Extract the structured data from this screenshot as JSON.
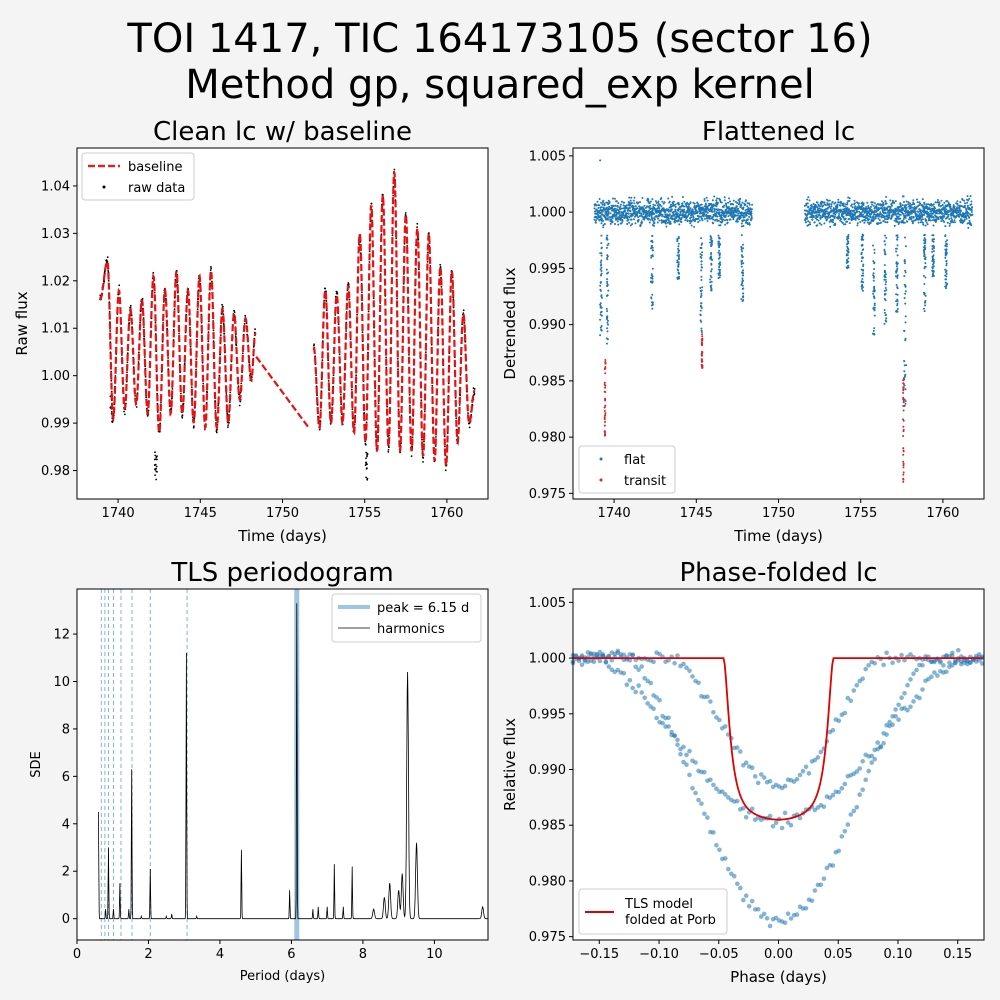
{
  "figure": {
    "title_line1": "TOI 1417, TIC 164173105 (sector 16)",
    "title_line2": "Method gp, squared_exp kernel",
    "colors": {
      "background": "#f4f4f4",
      "blue": "#1f77b4",
      "red": "#d62728",
      "model_red": "#e00000",
      "light_blue": "#9ec6df"
    }
  },
  "chart_data": [
    {
      "type": "scatter",
      "title": "Clean lc w/ baseline",
      "xlabel": "Time (days)",
      "ylabel": "Raw flux",
      "xlim": [
        1737.5,
        1762.5
      ],
      "ylim": [
        0.974,
        1.048
      ],
      "xticks": [
        1740,
        1745,
        1750,
        1755,
        1760
      ],
      "yticks": [
        0.98,
        0.99,
        1.0,
        1.01,
        1.02,
        1.03,
        1.04
      ],
      "ytick_labels": [
        "0.98",
        "0.99",
        "1.00",
        "1.01",
        "1.02",
        "1.03",
        "1.04"
      ],
      "legend": {
        "position": "upper-left",
        "entries": [
          "baseline",
          "raw data"
        ]
      },
      "series": [
        {
          "name": "baseline",
          "style": "dashed-line",
          "color": "#d62728",
          "segments": [
            {
              "x_range": [
                1738.8,
                1748.4
              ],
              "peaks": [
                [
                  1739.35,
                  1.024
                ],
                [
                  1740.05,
                  1.018
                ],
                [
                  1740.75,
                  1.014
                ],
                [
                  1741.45,
                  1.016
                ],
                [
                  1742.15,
                  1.021
                ],
                [
                  1742.85,
                  1.018
                ],
                [
                  1743.55,
                  1.022
                ],
                [
                  1744.25,
                  1.018
                ],
                [
                  1744.95,
                  1.021
                ],
                [
                  1745.65,
                  1.022
                ],
                [
                  1746.35,
                  1.014
                ],
                [
                  1747.05,
                  1.013
                ],
                [
                  1747.75,
                  1.012
                ],
                [
                  1748.35,
                  1.009
                ]
              ],
              "troughs": [
                [
                  1738.9,
                  1.016
                ],
                [
                  1739.7,
                  0.991
                ],
                [
                  1740.4,
                  0.993
                ],
                [
                  1741.1,
                  0.994
                ],
                [
                  1741.8,
                  0.992
                ],
                [
                  1742.5,
                  0.988
                ],
                [
                  1743.2,
                  0.992
                ],
                [
                  1743.9,
                  0.992
                ],
                [
                  1744.6,
                  0.99
                ],
                [
                  1745.3,
                  0.989
                ],
                [
                  1746.0,
                  0.989
                ],
                [
                  1746.7,
                  0.99
                ],
                [
                  1747.4,
                  0.995
                ],
                [
                  1748.1,
                  0.999
                ]
              ]
            },
            {
              "x_range": [
                1748.4,
                1751.6
              ],
              "line": [
                [
                  1748.4,
                  1.004
                ],
                [
                  1751.6,
                  0.989
                ]
              ]
            },
            {
              "x_range": [
                1751.6,
                1761.8
              ],
              "peaks": [
                [
                  1751.9,
                  1.006
                ],
                [
                  1752.6,
                  1.018
                ],
                [
                  1753.3,
                  1.017
                ],
                [
                  1754.0,
                  1.019
                ],
                [
                  1754.7,
                  1.03
                ],
                [
                  1755.4,
                  1.036
                ],
                [
                  1756.1,
                  1.038
                ],
                [
                  1756.8,
                  1.043
                ],
                [
                  1757.5,
                  1.034
                ],
                [
                  1758.2,
                  1.031
                ],
                [
                  1758.9,
                  1.03
                ],
                [
                  1759.6,
                  1.023
                ],
                [
                  1760.3,
                  1.022
                ],
                [
                  1761.0,
                  1.013
                ],
                [
                  1761.7,
                  0.997
                ]
              ],
              "troughs": [
                [
                  1752.25,
                  0.989
                ],
                [
                  1752.95,
                  0.99
                ],
                [
                  1753.65,
                  0.99
                ],
                [
                  1754.35,
                  0.988
                ],
                [
                  1755.05,
                  0.986
                ],
                [
                  1755.75,
                  0.984
                ],
                [
                  1756.45,
                  0.985
                ],
                [
                  1757.15,
                  0.984
                ],
                [
                  1757.85,
                  0.984
                ],
                [
                  1758.55,
                  0.983
                ],
                [
                  1759.25,
                  0.982
                ],
                [
                  1759.95,
                  0.981
                ],
                [
                  1760.65,
                  0.986
                ],
                [
                  1761.35,
                  0.99
                ]
              ]
            }
          ]
        },
        {
          "name": "raw data",
          "style": "points",
          "color": "#000000"
        }
      ]
    },
    {
      "type": "scatter",
      "title": "Flattened lc",
      "xlabel": "Time (days)",
      "ylabel": "Detrended flux",
      "xlim": [
        1737.5,
        1762.5
      ],
      "ylim": [
        0.9745,
        1.0057
      ],
      "xticks": [
        1740,
        1745,
        1750,
        1755,
        1760
      ],
      "yticks": [
        0.975,
        0.98,
        0.985,
        0.99,
        0.995,
        1.0,
        1.005
      ],
      "ytick_labels": [
        "0.975",
        "0.980",
        "0.985",
        "0.990",
        "0.995",
        "1.000",
        "1.005"
      ],
      "legend": {
        "position": "lower-left",
        "entries": [
          "flat",
          "transit"
        ]
      },
      "series": [
        {
          "name": "flat",
          "color": "#1f77b4",
          "x_ranges": [
            [
              1738.8,
              1748.4
            ],
            [
              1751.6,
              1761.8
            ]
          ],
          "band": [
            0.997,
            1.002
          ],
          "dips": [
            [
              1739.2,
              0.989
            ],
            [
              1739.6,
              0.988
            ],
            [
              1742.3,
              0.991
            ],
            [
              1743.9,
              0.994
            ],
            [
              1745.3,
              0.989
            ],
            [
              1745.9,
              0.993
            ],
            [
              1746.4,
              0.994
            ],
            [
              1747.8,
              0.992
            ],
            [
              1754.2,
              0.995
            ],
            [
              1755.1,
              0.993
            ],
            [
              1755.8,
              0.989
            ],
            [
              1756.5,
              0.99
            ],
            [
              1757.2,
              0.991
            ],
            [
              1757.7,
              0.981
            ],
            [
              1758.9,
              0.991
            ],
            [
              1759.4,
              0.994
            ],
            [
              1760.2,
              0.993
            ]
          ]
        },
        {
          "name": "transit",
          "color": "#d62728",
          "points_x": [
            1739.45,
            1745.35,
            1757.6
          ],
          "points_y_min": [
            0.98,
            0.986,
            0.976
          ]
        }
      ]
    },
    {
      "type": "line",
      "title": "TLS periodogram",
      "xlabel": "Period (days)",
      "ylabel": "SDE",
      "xlim": [
        0,
        11.5
      ],
      "ylim": [
        -0.9,
        13.9
      ],
      "xticks": [
        0,
        2,
        4,
        6,
        8,
        10
      ],
      "yticks": [
        0,
        2,
        4,
        6,
        8,
        10,
        12
      ],
      "legend": {
        "position": "upper-right",
        "entries": [
          "peak = 6.15 d",
          "harmonics"
        ]
      },
      "peak_period": 6.15,
      "harmonics": [
        0.68,
        0.78,
        0.88,
        1.02,
        1.23,
        1.54,
        2.05,
        3.08
      ],
      "peaks": [
        [
          0.6,
          4.5
        ],
        [
          0.8,
          0.4
        ],
        [
          0.88,
          3.0
        ],
        [
          1.02,
          0.4
        ],
        [
          1.2,
          1.5
        ],
        [
          1.45,
          0.4
        ],
        [
          1.53,
          6.3
        ],
        [
          1.8,
          0.1
        ],
        [
          2.05,
          2.1
        ],
        [
          2.5,
          0.1
        ],
        [
          2.65,
          0.2
        ],
        [
          3.06,
          11.2
        ],
        [
          3.35,
          0.1
        ],
        [
          4.6,
          2.9
        ],
        [
          5.95,
          1.2
        ],
        [
          6.15,
          13.3
        ],
        [
          6.6,
          0.4
        ],
        [
          6.75,
          0.5
        ],
        [
          7.0,
          0.5
        ],
        [
          7.2,
          2.3
        ],
        [
          7.45,
          0.5
        ],
        [
          7.7,
          2.2
        ],
        [
          8.3,
          0.4
        ],
        [
          8.6,
          0.9
        ],
        [
          8.75,
          1.5
        ],
        [
          9.0,
          1.2
        ],
        [
          9.1,
          1.9
        ],
        [
          9.25,
          10.4
        ],
        [
          9.5,
          3.2
        ],
        [
          11.35,
          0.5
        ]
      ]
    },
    {
      "type": "scatter",
      "title": "Phase-folded lc",
      "xlabel": "Phase (days)",
      "ylabel": "Relative flux",
      "xlim": [
        -0.172,
        0.172
      ],
      "ylim": [
        0.9747,
        1.0062
      ],
      "xticks": [
        -0.15,
        -0.1,
        -0.05,
        0.0,
        0.05,
        0.1,
        0.15
      ],
      "xtick_labels": [
        "−0.15",
        "−0.10",
        "−0.05",
        "0.00",
        "0.05",
        "0.10",
        "0.15"
      ],
      "yticks": [
        0.975,
        0.98,
        0.985,
        0.99,
        0.995,
        1.0,
        1.005
      ],
      "ytick_labels": [
        "0.975",
        "0.980",
        "0.985",
        "0.990",
        "0.995",
        "1.000",
        "1.005"
      ],
      "legend": {
        "position": "lower-left",
        "entries": [
          "TLS model\nfolded at Porb"
        ]
      },
      "series": [
        {
          "name": "data",
          "color": "#1f77b4",
          "branches": [
            {
              "half_width": 0.16,
              "depth": 0.0145
            },
            {
              "half_width": 0.13,
              "depth": 0.0235
            },
            {
              "half_width": 0.09,
              "depth": 0.0115
            }
          ]
        },
        {
          "name": "TLS model folded at Porb",
          "color": "#e00000",
          "ingress": [
            -0.046,
            0.046
          ],
          "depth": 0.0145
        }
      ]
    }
  ]
}
